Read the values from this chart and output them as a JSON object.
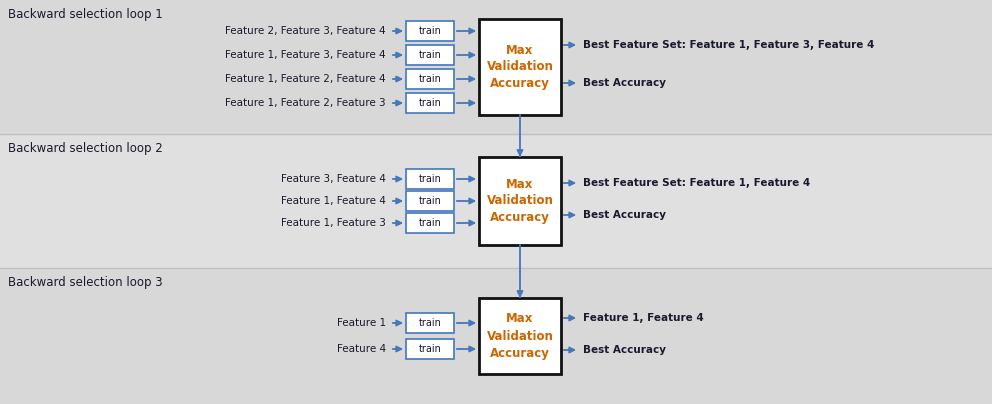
{
  "bg_color": "#d8d8d8",
  "divider_color": "#c0c0c0",
  "arrow_color": "#4477bb",
  "box_border_color": "#4477bb",
  "train_border_color": "#4477bb",
  "text_color_dark": "#1a1a2e",
  "text_color_feature": "#1a1a2e",
  "text_color_output": "#1a1a2e",
  "text_color_max": "#cc6600",
  "train_box_bg": "#ffffff",
  "max_box_bg": "#ffffff",
  "max_box_border": "#111111",
  "section_titles": [
    "Backward selection loop 1",
    "Backward selection loop 2",
    "Backward selection loop 3"
  ],
  "loop1": {
    "feature_rows": [
      "Feature 2, Feature 3, Feature 4",
      "Feature 1, Feature 3, Feature 4",
      "Feature 1, Feature 2, Feature 4",
      "Feature 1, Feature 2, Feature 3"
    ],
    "output_top": "Best Feature Set: Feature 1, Feature 3, Feature 4",
    "output_bottom": "Best Accuracy"
  },
  "loop2": {
    "feature_rows": [
      "Feature 3, Feature 4",
      "Feature 1, Feature 4",
      "Feature 1, Feature 3"
    ],
    "output_top": "Best Feature Set: Feature 1, Feature 4",
    "output_bottom": "Best Accuracy"
  },
  "loop3": {
    "feature_rows": [
      "Feature 1",
      "Feature 4"
    ],
    "output_top": "Feature 1, Feature 4",
    "output_bottom": "Best Accuracy"
  }
}
